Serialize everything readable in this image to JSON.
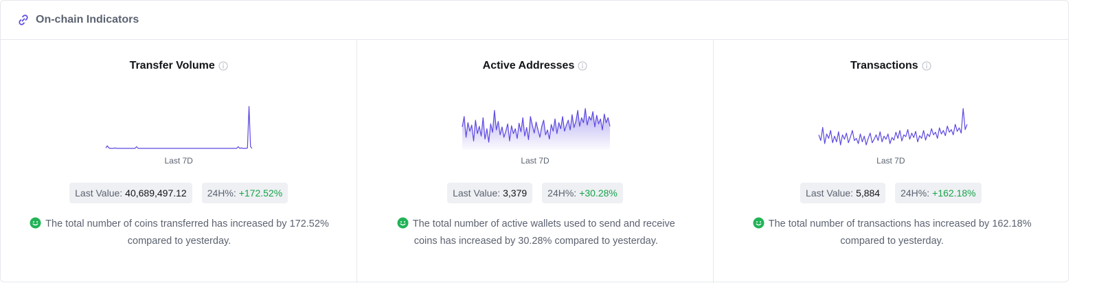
{
  "header": {
    "title": "On-chain Indicators",
    "icon": "chain-link-icon",
    "accent": "#5b4ce0"
  },
  "colors": {
    "line": "#5a47e0",
    "positive": "#16a34a",
    "chip_bg": "#eef0f3"
  },
  "metrics": [
    {
      "title": "Transfer Volume",
      "period_label": "Last 7D",
      "last_value_label": "Last Value:",
      "last_value": "40,689,497.12",
      "change_label": "24H%:",
      "change_value": "+172.52%",
      "description": "The total number of coins transferred has increased by 172.52% compared to yesterday.",
      "sentiment_icon": "smile-icon"
    },
    {
      "title": "Active Addresses",
      "period_label": "Last 7D",
      "last_value_label": "Last Value:",
      "last_value": "3,379",
      "change_label": "24H%:",
      "change_value": "+30.28%",
      "description": "The total number of active wallets used to send and receive coins has increased by 30.28% compared to yesterday.",
      "sentiment_icon": "smile-icon"
    },
    {
      "title": "Transactions",
      "period_label": "Last 7D",
      "last_value_label": "Last Value:",
      "last_value": "5,884",
      "change_label": "24H%:",
      "change_value": "+162.18%",
      "description": "The total number of transactions has increased by 162.18% compared to yesterday.",
      "sentiment_icon": "smile-icon"
    }
  ],
  "chart_data": [
    {
      "type": "line",
      "title": "Transfer Volume",
      "xlabel": "Last 7D",
      "fill": false,
      "values": [
        3,
        8,
        3,
        2,
        2,
        2,
        3,
        2,
        2,
        2,
        2,
        2,
        2,
        2,
        2,
        2,
        2,
        2,
        2,
        2,
        6,
        2,
        2,
        2,
        2,
        2,
        2,
        2,
        2,
        2,
        2,
        2,
        2,
        2,
        2,
        2,
        2,
        2,
        2,
        2,
        2,
        2,
        2,
        2,
        2,
        2,
        2,
        2,
        2,
        2,
        2,
        2,
        2,
        2,
        2,
        2,
        2,
        2,
        2,
        2,
        2,
        2,
        2,
        2,
        2,
        2,
        2,
        2,
        2,
        2,
        2,
        2,
        2,
        2,
        2,
        2,
        2,
        2,
        2,
        2,
        2,
        2,
        2,
        2,
        2,
        2,
        6,
        2,
        3,
        2,
        2,
        2,
        3,
        100,
        6,
        2
      ]
    },
    {
      "type": "area",
      "title": "Active Addresses",
      "xlabel": "Last 7D",
      "fill": true,
      "values": [
        55,
        72,
        38,
        62,
        48,
        58,
        32,
        66,
        44,
        56,
        40,
        70,
        35,
        52,
        30,
        60,
        46,
        82,
        50,
        64,
        42,
        55,
        38,
        48,
        60,
        32,
        57,
        44,
        52,
        36,
        61,
        47,
        70,
        40,
        54,
        34,
        72,
        58,
        45,
        63,
        50,
        38,
        56,
        66,
        42,
        50,
        35,
        59,
        48,
        68,
        44,
        62,
        52,
        72,
        48,
        58,
        66,
        50,
        75,
        54,
        64,
        82,
        56,
        70,
        62,
        85,
        58,
        72,
        66,
        80,
        55,
        74,
        60,
        68,
        50,
        76,
        62,
        70,
        56
      ]
    },
    {
      "type": "line",
      "title": "Transactions",
      "xlabel": "Last 7D",
      "fill": false,
      "values": [
        38,
        25,
        55,
        18,
        40,
        30,
        48,
        20,
        35,
        22,
        45,
        15,
        38,
        28,
        42,
        20,
        33,
        48,
        25,
        30,
        18,
        40,
        22,
        35,
        15,
        30,
        42,
        20,
        28,
        38,
        25,
        45,
        22,
        35,
        28,
        40,
        18,
        32,
        26,
        44,
        30,
        48,
        24,
        38,
        34,
        50,
        28,
        42,
        32,
        46,
        22,
        36,
        30,
        48,
        26,
        40,
        34,
        52,
        38,
        44,
        30,
        54,
        40,
        48,
        36,
        58,
        44,
        50,
        38,
        62,
        46,
        54,
        42,
        98,
        50,
        62
      ]
    }
  ]
}
